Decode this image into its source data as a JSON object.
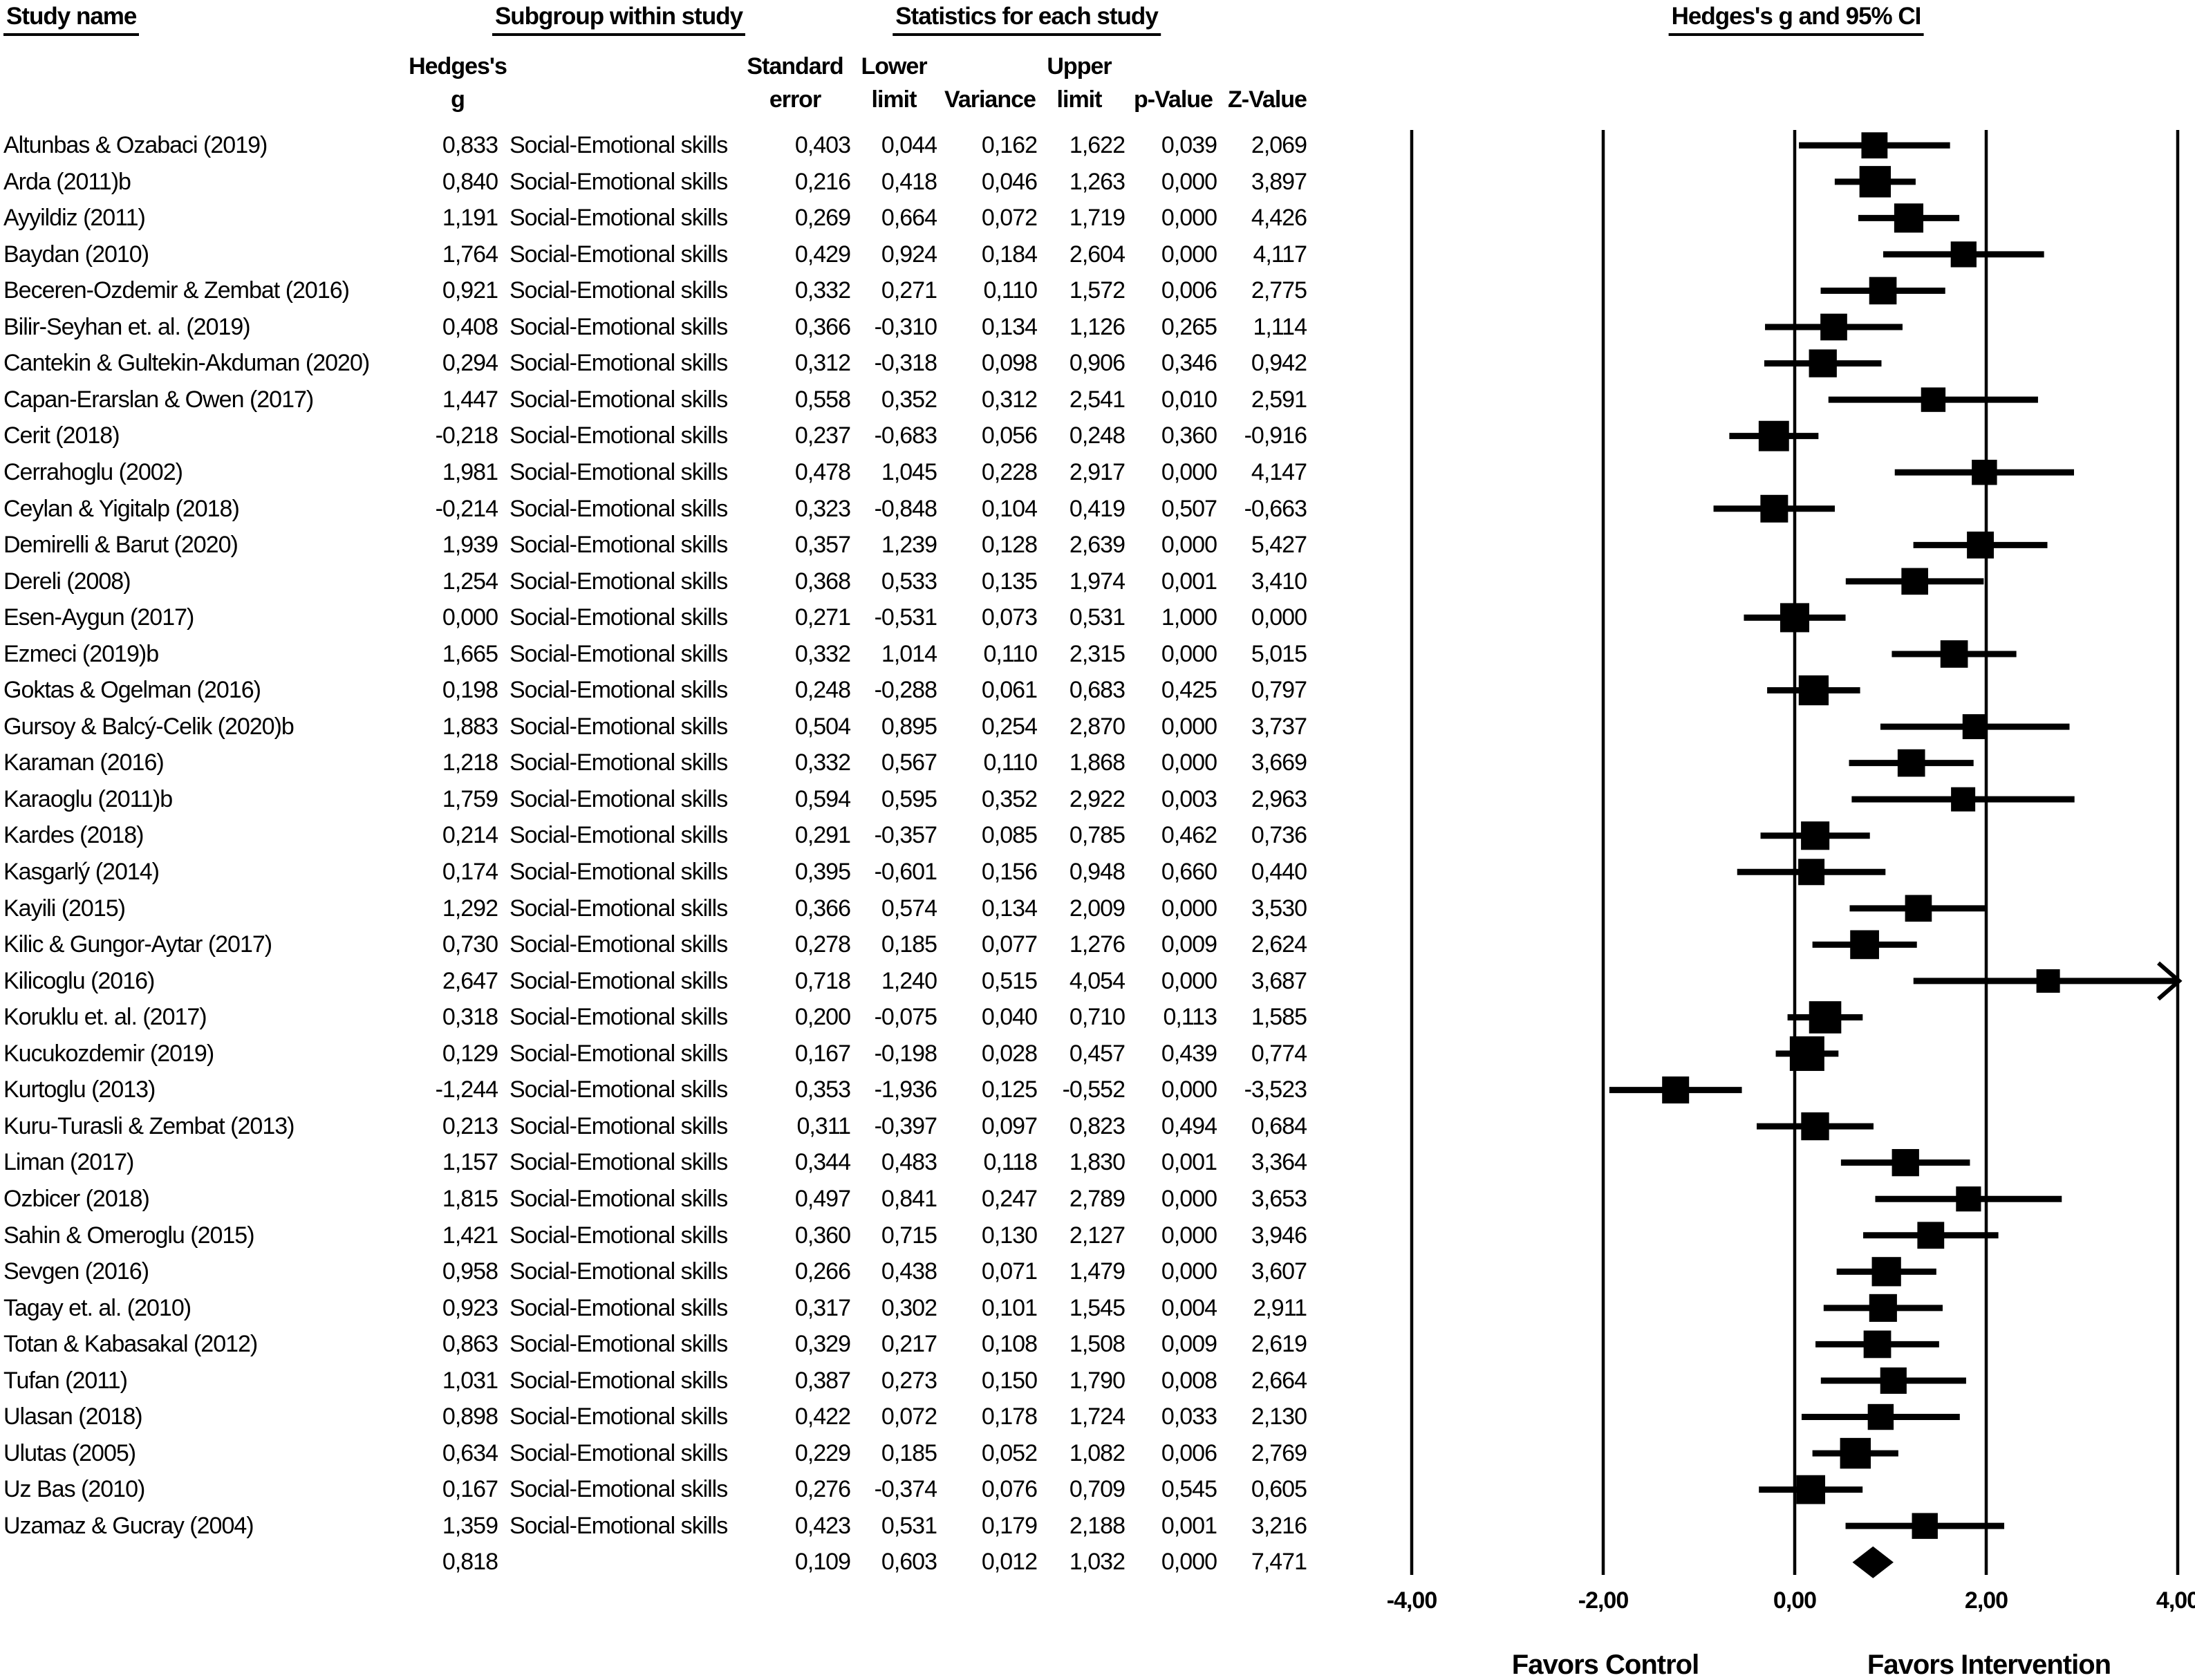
{
  "headers": {
    "study_name": "Study name",
    "subgroup": "Subgroup within study",
    "statistics": "Statistics for each study",
    "effect": "Hedges's g and 95% CI",
    "col_hedges_line1": "Hedges's",
    "col_hedges_line2": "g",
    "col_se_line1": "Standard",
    "col_se_line2": "error",
    "col_lower_line1": "Lower",
    "col_lower_line2": "limit",
    "col_variance": "Variance",
    "col_upper_line1": "Upper",
    "col_upper_line2": "limit",
    "col_p": "p-Value",
    "col_z": "Z-Value"
  },
  "chart_data": {
    "type": "forest",
    "title": "Hedges's g and 95% CI",
    "xlim": [
      -4,
      4
    ],
    "x_ticks": [
      -4,
      -2,
      0,
      2,
      4
    ],
    "x_tick_labels": [
      "-4,00",
      "-2,00",
      "0,00",
      "2,00",
      "4,00"
    ],
    "favors_left": "Favors Control",
    "favors_right": "Favors Intervention",
    "decimal_separator": ",",
    "marker_color": "#000000",
    "subgroup_label": "Social-Emotional skills",
    "studies": [
      {
        "name": "Altunbas & Ozabaci (2019)",
        "g": 0.833,
        "se": 0.403,
        "lower": 0.044,
        "variance": 0.162,
        "upper": 1.622,
        "p": 0.039,
        "z": 2.069
      },
      {
        "name": "Arda (2011)b",
        "g": 0.84,
        "se": 0.216,
        "lower": 0.418,
        "variance": 0.046,
        "upper": 1.263,
        "p": 0.0,
        "z": 3.897
      },
      {
        "name": "Ayyildiz (2011)",
        "g": 1.191,
        "se": 0.269,
        "lower": 0.664,
        "variance": 0.072,
        "upper": 1.719,
        "p": 0.0,
        "z": 4.426
      },
      {
        "name": "Baydan (2010)",
        "g": 1.764,
        "se": 0.429,
        "lower": 0.924,
        "variance": 0.184,
        "upper": 2.604,
        "p": 0.0,
        "z": 4.117
      },
      {
        "name": "Beceren-Ozdemir & Zembat (2016)",
        "g": 0.921,
        "se": 0.332,
        "lower": 0.271,
        "variance": 0.11,
        "upper": 1.572,
        "p": 0.006,
        "z": 2.775
      },
      {
        "name": "Bilir-Seyhan et. al. (2019)",
        "g": 0.408,
        "se": 0.366,
        "lower": -0.31,
        "variance": 0.134,
        "upper": 1.126,
        "p": 0.265,
        "z": 1.114
      },
      {
        "name": "Cantekin & Gultekin-Akduman (2020)",
        "g": 0.294,
        "se": 0.312,
        "lower": -0.318,
        "variance": 0.098,
        "upper": 0.906,
        "p": 0.346,
        "z": 0.942
      },
      {
        "name": "Capan-Erarslan & Owen (2017)",
        "g": 1.447,
        "se": 0.558,
        "lower": 0.352,
        "variance": 0.312,
        "upper": 2.541,
        "p": 0.01,
        "z": 2.591
      },
      {
        "name": "Cerit (2018)",
        "g": -0.218,
        "se": 0.237,
        "lower": -0.683,
        "variance": 0.056,
        "upper": 0.248,
        "p": 0.36,
        "z": -0.916
      },
      {
        "name": "Cerrahoglu (2002)",
        "g": 1.981,
        "se": 0.478,
        "lower": 1.045,
        "variance": 0.228,
        "upper": 2.917,
        "p": 0.0,
        "z": 4.147
      },
      {
        "name": "Ceylan & Yigitalp (2018)",
        "g": -0.214,
        "se": 0.323,
        "lower": -0.848,
        "variance": 0.104,
        "upper": 0.419,
        "p": 0.507,
        "z": -0.663
      },
      {
        "name": "Demirelli & Barut (2020)",
        "g": 1.939,
        "se": 0.357,
        "lower": 1.239,
        "variance": 0.128,
        "upper": 2.639,
        "p": 0.0,
        "z": 5.427
      },
      {
        "name": "Dereli (2008)",
        "g": 1.254,
        "se": 0.368,
        "lower": 0.533,
        "variance": 0.135,
        "upper": 1.974,
        "p": 0.001,
        "z": 3.41
      },
      {
        "name": "Esen-Aygun (2017)",
        "g": 0.0,
        "se": 0.271,
        "lower": -0.531,
        "variance": 0.073,
        "upper": 0.531,
        "p": 1.0,
        "z": 0.0
      },
      {
        "name": "Ezmeci (2019)b",
        "g": 1.665,
        "se": 0.332,
        "lower": 1.014,
        "variance": 0.11,
        "upper": 2.315,
        "p": 0.0,
        "z": 5.015
      },
      {
        "name": "Goktas & Ogelman (2016)",
        "g": 0.198,
        "se": 0.248,
        "lower": -0.288,
        "variance": 0.061,
        "upper": 0.683,
        "p": 0.425,
        "z": 0.797
      },
      {
        "name": "Gursoy & Balcý-Celik (2020)b",
        "g": 1.883,
        "se": 0.504,
        "lower": 0.895,
        "variance": 0.254,
        "upper": 2.87,
        "p": 0.0,
        "z": 3.737
      },
      {
        "name": "Karaman (2016)",
        "g": 1.218,
        "se": 0.332,
        "lower": 0.567,
        "variance": 0.11,
        "upper": 1.868,
        "p": 0.0,
        "z": 3.669
      },
      {
        "name": "Karaoglu (2011)b",
        "g": 1.759,
        "se": 0.594,
        "lower": 0.595,
        "variance": 0.352,
        "upper": 2.922,
        "p": 0.003,
        "z": 2.963
      },
      {
        "name": "Kardes (2018)",
        "g": 0.214,
        "se": 0.291,
        "lower": -0.357,
        "variance": 0.085,
        "upper": 0.785,
        "p": 0.462,
        "z": 0.736
      },
      {
        "name": "Kasgarlý (2014)",
        "g": 0.174,
        "se": 0.395,
        "lower": -0.601,
        "variance": 0.156,
        "upper": 0.948,
        "p": 0.66,
        "z": 0.44
      },
      {
        "name": "Kayili (2015)",
        "g": 1.292,
        "se": 0.366,
        "lower": 0.574,
        "variance": 0.134,
        "upper": 2.009,
        "p": 0.0,
        "z": 3.53
      },
      {
        "name": "Kilic & Gungor-Aytar (2017)",
        "g": 0.73,
        "se": 0.278,
        "lower": 0.185,
        "variance": 0.077,
        "upper": 1.276,
        "p": 0.009,
        "z": 2.624
      },
      {
        "name": "Kilicoglu (2016)",
        "g": 2.647,
        "se": 0.718,
        "lower": 1.24,
        "variance": 0.515,
        "upper": 4.054,
        "p": 0.0,
        "z": 3.687
      },
      {
        "name": "Koruklu et. al. (2017)",
        "g": 0.318,
        "se": 0.2,
        "lower": -0.075,
        "variance": 0.04,
        "upper": 0.71,
        "p": 0.113,
        "z": 1.585
      },
      {
        "name": "Kucukozdemir (2019)",
        "g": 0.129,
        "se": 0.167,
        "lower": -0.198,
        "variance": 0.028,
        "upper": 0.457,
        "p": 0.439,
        "z": 0.774
      },
      {
        "name": "Kurtoglu (2013)",
        "g": -1.244,
        "se": 0.353,
        "lower": -1.936,
        "variance": 0.125,
        "upper": -0.552,
        "p": 0.0,
        "z": -3.523
      },
      {
        "name": "Kuru-Turasli & Zembat (2013)",
        "g": 0.213,
        "se": 0.311,
        "lower": -0.397,
        "variance": 0.097,
        "upper": 0.823,
        "p": 0.494,
        "z": 0.684
      },
      {
        "name": "Liman (2017)",
        "g": 1.157,
        "se": 0.344,
        "lower": 0.483,
        "variance": 0.118,
        "upper": 1.83,
        "p": 0.001,
        "z": 3.364
      },
      {
        "name": "Ozbicer (2018)",
        "g": 1.815,
        "se": 0.497,
        "lower": 0.841,
        "variance": 0.247,
        "upper": 2.789,
        "p": 0.0,
        "z": 3.653
      },
      {
        "name": "Sahin & Omeroglu (2015)",
        "g": 1.421,
        "se": 0.36,
        "lower": 0.715,
        "variance": 0.13,
        "upper": 2.127,
        "p": 0.0,
        "z": 3.946
      },
      {
        "name": "Sevgen (2016)",
        "g": 0.958,
        "se": 0.266,
        "lower": 0.438,
        "variance": 0.071,
        "upper": 1.479,
        "p": 0.0,
        "z": 3.607
      },
      {
        "name": "Tagay et. al. (2010)",
        "g": 0.923,
        "se": 0.317,
        "lower": 0.302,
        "variance": 0.101,
        "upper": 1.545,
        "p": 0.004,
        "z": 2.911
      },
      {
        "name": "Totan & Kabasakal (2012)",
        "g": 0.863,
        "se": 0.329,
        "lower": 0.217,
        "variance": 0.108,
        "upper": 1.508,
        "p": 0.009,
        "z": 2.619
      },
      {
        "name": "Tufan (2011)",
        "g": 1.031,
        "se": 0.387,
        "lower": 0.273,
        "variance": 0.15,
        "upper": 1.79,
        "p": 0.008,
        "z": 2.664
      },
      {
        "name": "Ulasan (2018)",
        "g": 0.898,
        "se": 0.422,
        "lower": 0.072,
        "variance": 0.178,
        "upper": 1.724,
        "p": 0.033,
        "z": 2.13
      },
      {
        "name": "Ulutas (2005)",
        "g": 0.634,
        "se": 0.229,
        "lower": 0.185,
        "variance": 0.052,
        "upper": 1.082,
        "p": 0.006,
        "z": 2.769
      },
      {
        "name": "Uz Bas (2010)",
        "g": 0.167,
        "se": 0.276,
        "lower": -0.374,
        "variance": 0.076,
        "upper": 0.709,
        "p": 0.545,
        "z": 0.605
      },
      {
        "name": "Uzamaz & Gucray (2004)",
        "g": 1.359,
        "se": 0.423,
        "lower": 0.531,
        "variance": 0.179,
        "upper": 2.188,
        "p": 0.001,
        "z": 3.216
      }
    ],
    "summary": {
      "g": 0.818,
      "se": 0.109,
      "lower": 0.603,
      "variance": 0.012,
      "upper": 1.032,
      "p": 0.0,
      "z": 7.471
    }
  }
}
